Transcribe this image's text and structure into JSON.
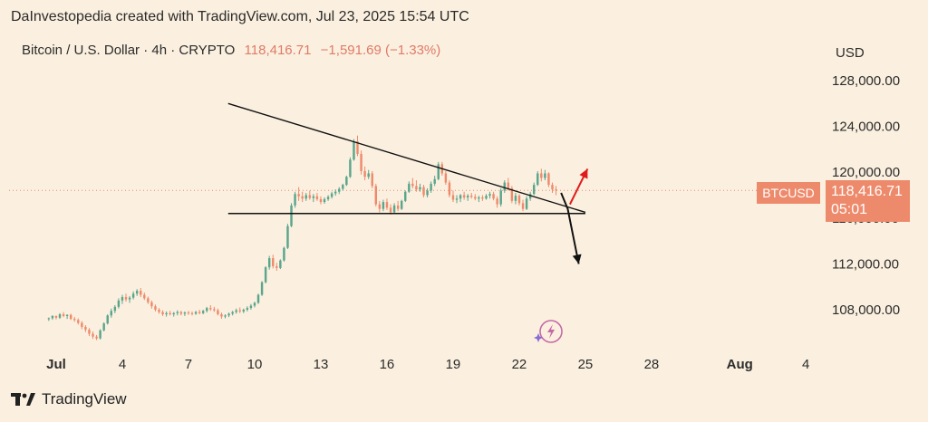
{
  "header": {
    "attribution": "DaInvestopedia created with TradingView.com, Jul 23, 2025 15:54 UTC"
  },
  "symbol": {
    "name": "Bitcoin / U.S. Dollar · 4h · CRYPTO",
    "last_price": "118,416.71",
    "change": "−1,591.69 (−1.33%)"
  },
  "currency": "USD",
  "price_tag": {
    "symbol": "BTCUSD",
    "price": "118,416.71",
    "countdown": "05:01"
  },
  "branding": {
    "name": "TradingView",
    "icon": "tradingview-logo-icon"
  },
  "colors": {
    "background": "#fbf0df",
    "bull": "#5aa58c",
    "bear": "#ee8a6c",
    "trendline": "#111111",
    "up_arrow": "#e01b1b",
    "down_arrow": "#111111"
  },
  "chart_data": {
    "type": "candlestick",
    "timeframe": "4h",
    "y_range": [
      104500,
      130000
    ],
    "y_ticks": [
      {
        "value": 108000,
        "label": "108,000.00"
      },
      {
        "value": 112000,
        "label": "112,000.00"
      },
      {
        "value": 116000,
        "label": "116,000.00"
      },
      {
        "value": 120000,
        "label": "120,000.00"
      },
      {
        "value": 124000,
        "label": "124,000.00"
      },
      {
        "value": 128000,
        "label": "128,000.00"
      }
    ],
    "x_range_days": [
      -0.5,
      37.5
    ],
    "x_ticks": [
      {
        "day": 0,
        "label": "Jul",
        "bold": true
      },
      {
        "day": 3,
        "label": "4"
      },
      {
        "day": 6,
        "label": "7"
      },
      {
        "day": 9,
        "label": "10"
      },
      {
        "day": 12,
        "label": "13"
      },
      {
        "day": 15,
        "label": "16"
      },
      {
        "day": 18,
        "label": "19"
      },
      {
        "day": 21,
        "label": "22"
      },
      {
        "day": 24,
        "label": "25"
      },
      {
        "day": 27,
        "label": "28"
      },
      {
        "day": 31,
        "label": "Aug",
        "bold": true
      },
      {
        "day": 34,
        "label": "4"
      }
    ],
    "day_anchors": [
      0,
      5
    ],
    "candle_period_days": 0.1667,
    "candles": [
      [
        107180,
        107320,
        107020,
        107260
      ],
      [
        107260,
        107520,
        107120,
        107450
      ],
      [
        107450,
        107500,
        107150,
        107300
      ],
      [
        107300,
        107700,
        107200,
        107600
      ],
      [
        107600,
        107800,
        107350,
        107450
      ],
      [
        107450,
        107600,
        107200,
        107550
      ],
      [
        107550,
        107650,
        107100,
        107200
      ],
      [
        107200,
        107380,
        106950,
        107100
      ],
      [
        107100,
        107250,
        106700,
        106850
      ],
      [
        106850,
        107000,
        106300,
        106500
      ],
      [
        106500,
        106650,
        106050,
        106250
      ],
      [
        106250,
        106400,
        105700,
        105900
      ],
      [
        105900,
        106100,
        105450,
        105650
      ],
      [
        105650,
        105800,
        105350,
        105500
      ],
      [
        105500,
        106300,
        105400,
        106200
      ],
      [
        106200,
        106900,
        106100,
        106800
      ],
      [
        106800,
        107600,
        106700,
        107500
      ],
      [
        107500,
        108100,
        107300,
        107900
      ],
      [
        107900,
        108400,
        107700,
        108250
      ],
      [
        108250,
        109000,
        108100,
        108800
      ],
      [
        108800,
        109300,
        108500,
        109100
      ],
      [
        109100,
        109400,
        108700,
        108900
      ],
      [
        108900,
        109200,
        108600,
        109050
      ],
      [
        109050,
        109600,
        108900,
        109400
      ],
      [
        109400,
        109800,
        109200,
        109650
      ],
      [
        109650,
        109900,
        109100,
        109300
      ],
      [
        109300,
        109500,
        108850,
        109000
      ],
      [
        109000,
        109150,
        108500,
        108650
      ],
      [
        108650,
        108800,
        108100,
        108300
      ],
      [
        108300,
        108450,
        107850,
        108000
      ],
      [
        108000,
        108150,
        107650,
        107800
      ],
      [
        107800,
        107950,
        107450,
        107600
      ],
      [
        107600,
        107850,
        107400,
        107700
      ],
      [
        107700,
        107900,
        107500,
        107600
      ],
      [
        107600,
        107800,
        107400,
        107700
      ],
      [
        107700,
        107950,
        107500,
        107800
      ],
      [
        107800,
        107900,
        107500,
        107650
      ],
      [
        107650,
        107850,
        107450,
        107750
      ],
      [
        107750,
        107900,
        107550,
        107700
      ],
      [
        107700,
        107850,
        107500,
        107650
      ],
      [
        107650,
        107900,
        107550,
        107800
      ],
      [
        107800,
        108000,
        107600,
        107700
      ],
      [
        107700,
        108000,
        107600,
        107900
      ],
      [
        107900,
        108250,
        107750,
        108150
      ],
      [
        108150,
        108400,
        107900,
        108050
      ],
      [
        108050,
        108250,
        107800,
        107950
      ],
      [
        107950,
        108100,
        107500,
        107600
      ],
      [
        107600,
        107750,
        107200,
        107400
      ],
      [
        107400,
        107600,
        107250,
        107500
      ],
      [
        107500,
        107750,
        107350,
        107650
      ],
      [
        107650,
        107900,
        107500,
        107800
      ],
      [
        107800,
        108100,
        107650,
        107950
      ],
      [
        107950,
        108200,
        107700,
        107850
      ],
      [
        107850,
        108100,
        107700,
        108000
      ],
      [
        108000,
        108300,
        107850,
        108150
      ],
      [
        108150,
        108500,
        108000,
        108350
      ],
      [
        108350,
        108700,
        108200,
        108600
      ],
      [
        108600,
        109400,
        108500,
        109300
      ],
      [
        109300,
        110500,
        109200,
        110400
      ],
      [
        110400,
        111800,
        110300,
        111700
      ],
      [
        111700,
        112700,
        111500,
        112500
      ],
      [
        112500,
        112800,
        111600,
        111800
      ],
      [
        111800,
        112100,
        111400,
        111650
      ],
      [
        111650,
        112400,
        111550,
        112300
      ],
      [
        112300,
        113500,
        112200,
        113400
      ],
      [
        113400,
        115500,
        113300,
        115300
      ],
      [
        115300,
        117300,
        115200,
        117100
      ],
      [
        117100,
        118300,
        116900,
        118100
      ],
      [
        118100,
        118700,
        117500,
        117900
      ],
      [
        117900,
        118300,
        117400,
        117700
      ],
      [
        117700,
        118200,
        117500,
        118000
      ],
      [
        118000,
        118400,
        117600,
        117750
      ],
      [
        117750,
        118100,
        117400,
        117900
      ],
      [
        117900,
        118200,
        117500,
        117650
      ],
      [
        117650,
        117900,
        117200,
        117400
      ],
      [
        117400,
        117800,
        117250,
        117650
      ],
      [
        117650,
        118000,
        117500,
        117850
      ],
      [
        117850,
        118300,
        117700,
        118150
      ],
      [
        118150,
        118500,
        117950,
        118300
      ],
      [
        118300,
        118700,
        118100,
        118550
      ],
      [
        118550,
        119000,
        118400,
        118900
      ],
      [
        118900,
        119700,
        118800,
        119600
      ],
      [
        119600,
        121300,
        119500,
        121100
      ],
      [
        121100,
        122900,
        121000,
        122700
      ],
      [
        122700,
        123200,
        121400,
        121600
      ],
      [
        121600,
        121900,
        119800,
        120100
      ],
      [
        120100,
        120500,
        119300,
        119600
      ],
      [
        119600,
        120200,
        119400,
        119900
      ],
      [
        119900,
        120100,
        118600,
        118800
      ],
      [
        118800,
        119000,
        117000,
        117200
      ],
      [
        117200,
        117500,
        116500,
        116800
      ],
      [
        116800,
        117600,
        116600,
        117400
      ],
      [
        117400,
        117700,
        116700,
        116900
      ],
      [
        116900,
        117200,
        116300,
        116500
      ],
      [
        116500,
        117300,
        116400,
        117100
      ],
      [
        117100,
        117500,
        116600,
        116800
      ],
      [
        116800,
        117600,
        116700,
        117500
      ],
      [
        117500,
        118400,
        117400,
        118300
      ],
      [
        118300,
        119200,
        118200,
        119000
      ],
      [
        119000,
        119500,
        118600,
        118800
      ],
      [
        118800,
        119300,
        118300,
        118500
      ],
      [
        118500,
        119000,
        118300,
        118700
      ],
      [
        118700,
        118900,
        117800,
        118000
      ],
      [
        118000,
        118600,
        117800,
        118400
      ],
      [
        118400,
        119200,
        118200,
        119000
      ],
      [
        119000,
        119700,
        118800,
        119400
      ],
      [
        119400,
        120900,
        119300,
        120700
      ],
      [
        120700,
        120900,
        119700,
        119900
      ],
      [
        119900,
        120100,
        118900,
        119100
      ],
      [
        119100,
        119300,
        117800,
        118000
      ],
      [
        118000,
        118400,
        117400,
        117600
      ],
      [
        117600,
        118000,
        117300,
        117700
      ],
      [
        117700,
        118100,
        117400,
        118000
      ],
      [
        118000,
        118300,
        117600,
        117800
      ],
      [
        117800,
        118100,
        117500,
        117950
      ],
      [
        117950,
        118200,
        117700,
        117850
      ],
      [
        117850,
        118100,
        117550,
        117700
      ],
      [
        117700,
        117950,
        117400,
        117800
      ],
      [
        117800,
        118000,
        117500,
        117700
      ],
      [
        117700,
        118100,
        117600,
        117950
      ],
      [
        117950,
        118300,
        117700,
        118100
      ],
      [
        118100,
        118300,
        117550,
        117700
      ],
      [
        117700,
        117900,
        116900,
        117200
      ],
      [
        117200,
        118600,
        117000,
        118400
      ],
      [
        118400,
        119300,
        118200,
        119100
      ],
      [
        119100,
        119500,
        118400,
        118600
      ],
      [
        118600,
        118800,
        117300,
        117500
      ],
      [
        117500,
        118200,
        117200,
        117950
      ],
      [
        117950,
        118100,
        117100,
        117300
      ],
      [
        117300,
        117600,
        116600,
        116800
      ],
      [
        116800,
        117900,
        116700,
        117700
      ],
      [
        117700,
        118300,
        117500,
        118100
      ],
      [
        118100,
        119100,
        118000,
        118900
      ],
      [
        118900,
        120100,
        118800,
        119900
      ],
      [
        119900,
        120300,
        119200,
        119500
      ],
      [
        119500,
        120200,
        119300,
        119900
      ],
      [
        119900,
        120000,
        118700,
        118900
      ],
      [
        118900,
        119100,
        118200,
        118500
      ],
      [
        118500,
        118800,
        118000,
        118416.71
      ]
    ]
  },
  "annotations": {
    "resistance_line": {
      "from": {
        "day": 7.8,
        "price": 126000
      },
      "to": {
        "day": 24.0,
        "price": 116500
      }
    },
    "support_line": {
      "from": {
        "day": 7.8,
        "price": 116400
      },
      "to": {
        "day": 24.0,
        "price": 116400
      }
    },
    "last_price_line": 118416.71,
    "up_arrow": {
      "from": {
        "day": 23.3,
        "price": 117200
      },
      "to": {
        "day": 24.1,
        "price": 120300
      }
    },
    "down_arrow": {
      "from": {
        "day": 22.9,
        "price": 118200
      },
      "via": {
        "day": 23.2,
        "price": 116800
      },
      "to": {
        "day": 23.7,
        "price": 112000
      }
    }
  }
}
